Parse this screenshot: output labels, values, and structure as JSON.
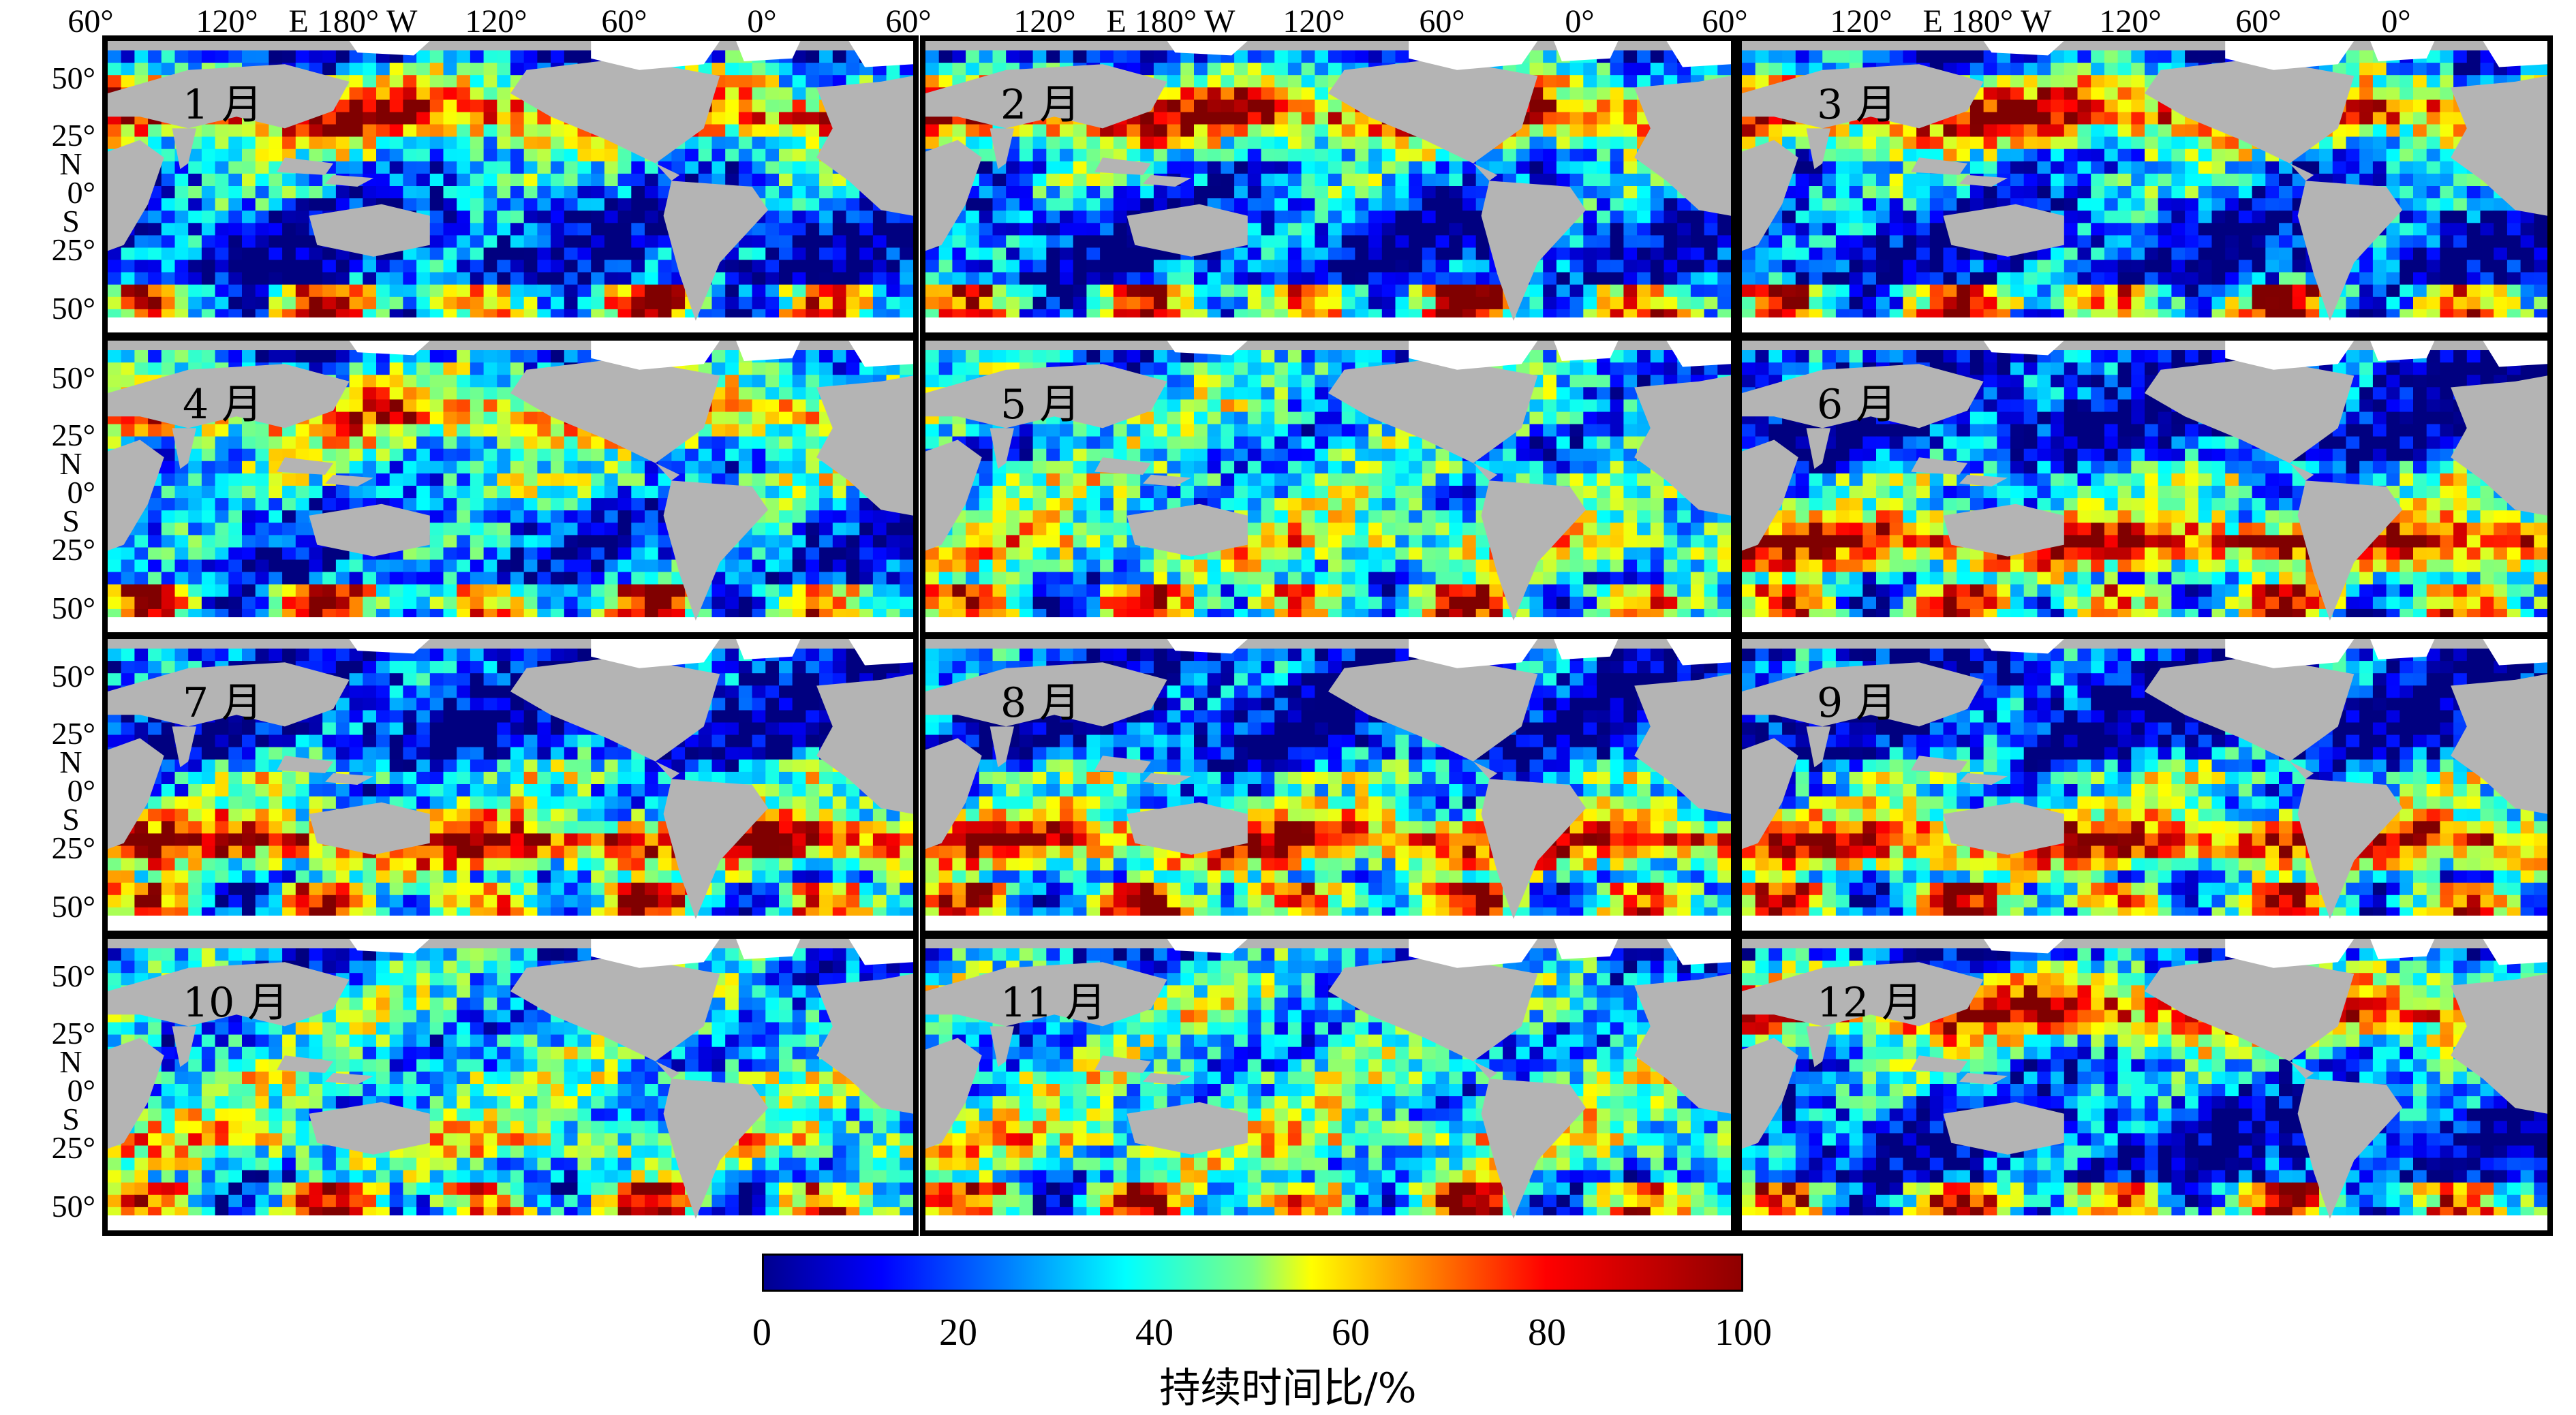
{
  "figure": {
    "top_axis_labels": [
      "60°",
      "120°",
      "E 180° W",
      "120°",
      "60°",
      "0°"
    ],
    "lat_labels": [
      "50°",
      "25°",
      "0°",
      "25°",
      "50°"
    ],
    "hemisphere_labels": [
      "N",
      "S"
    ],
    "panels": [
      {
        "label": "1 月",
        "dominant": "north-high"
      },
      {
        "label": "2 月",
        "dominant": "north-high"
      },
      {
        "label": "3 月",
        "dominant": "north-high"
      },
      {
        "label": "4 月",
        "dominant": "north-mid"
      },
      {
        "label": "5 月",
        "dominant": "transition"
      },
      {
        "label": "6 月",
        "dominant": "south-high"
      },
      {
        "label": "7 月",
        "dominant": "south-high"
      },
      {
        "label": "8 月",
        "dominant": "south-high"
      },
      {
        "label": "9 月",
        "dominant": "south-high"
      },
      {
        "label": "10 月",
        "dominant": "transition"
      },
      {
        "label": "11 月",
        "dominant": "transition"
      },
      {
        "label": "12 月",
        "dominant": "north-high"
      }
    ],
    "colorbar": {
      "title": "持续时间比/%",
      "ticks": [
        "0",
        "20",
        "40",
        "60",
        "80",
        "100"
      ],
      "range": [
        0,
        100
      ],
      "colormap": "jet"
    },
    "colors": {
      "land": "#b4b4b4",
      "ice": "#ffffff",
      "low": "#00008f",
      "mid": "#00ffff",
      "high": "#8f0000"
    }
  }
}
